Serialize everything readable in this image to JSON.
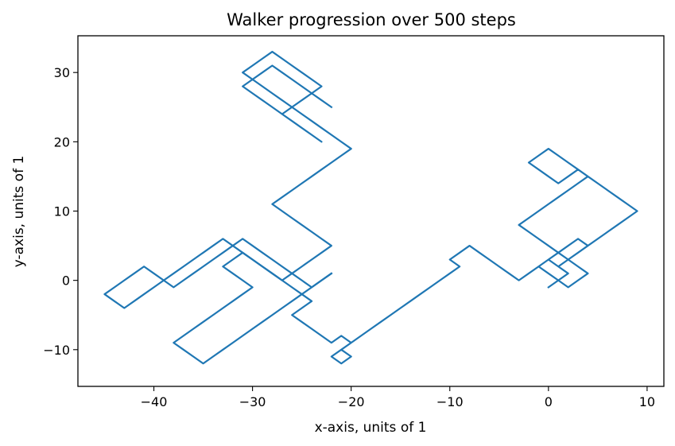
{
  "chart_data": {
    "type": "line",
    "title": "Walker progression over 500 steps",
    "xlabel": "x-axis, units of 1",
    "ylabel": "y-axis, units of 1",
    "xlim": [
      -47.7,
      11.7
    ],
    "ylim": [
      -15.3,
      35.3
    ],
    "xticks": [
      -40,
      -30,
      -20,
      -10,
      0,
      10
    ],
    "yticks": [
      -10,
      0,
      10,
      20,
      30
    ],
    "xtick_labels": [
      "−40",
      "−30",
      "−20",
      "−10",
      "0",
      "10"
    ],
    "ytick_labels": [
      "−10",
      "0",
      "10",
      "20",
      "30"
    ],
    "grid": false,
    "legend": "none",
    "colors": {
      "series": "#1f77b4"
    },
    "series": [
      {
        "x": [
          0,
          1,
          2,
          1,
          0,
          -1,
          0,
          1,
          2,
          3,
          4,
          3,
          2,
          1,
          0,
          -1,
          -2,
          -3,
          -2,
          -1,
          0,
          1,
          2,
          3,
          4,
          5,
          6,
          5,
          4,
          3,
          2,
          1,
          0,
          -1,
          -2,
          -1,
          0,
          1,
          2,
          3,
          4,
          5,
          6,
          7,
          8,
          9,
          8,
          7,
          6,
          5,
          4,
          3,
          2,
          1,
          2,
          3,
          4,
          3,
          2,
          1,
          0,
          1,
          0,
          -1,
          0,
          1,
          0,
          -1,
          -2,
          -3,
          -4,
          -5,
          -6,
          -7,
          -8,
          -9,
          -10,
          -9,
          -10,
          -11,
          -12,
          -13,
          -14,
          -15,
          -16,
          -17,
          -18,
          -19,
          -20,
          -21,
          -20,
          -21,
          -22,
          -21,
          -20,
          -21,
          -22,
          -23,
          -24,
          -25,
          -26,
          -25,
          -24,
          -25,
          -26,
          -27,
          -28,
          -29,
          -30,
          -31,
          -32,
          -33,
          -32,
          -31,
          -30,
          -31,
          -32,
          -33,
          -34,
          -35,
          -36,
          -37,
          -38,
          -37,
          -36,
          -35,
          -34,
          -33,
          -32,
          -31,
          -30,
          -29,
          -28,
          -27,
          -26,
          -25,
          -24,
          -23,
          -22
        ],
        "y": [
          -1,
          0,
          1,
          2,
          3,
          2,
          1,
          0,
          -1,
          0,
          1,
          2,
          3,
          4,
          5,
          6,
          7,
          8,
          9,
          10,
          11,
          12,
          13,
          14,
          15,
          14,
          13,
          14,
          15,
          16,
          17,
          18,
          19,
          18,
          17,
          16,
          15,
          14,
          15,
          16,
          15,
          14,
          13,
          12,
          11,
          10,
          9,
          8,
          7,
          6,
          5,
          4,
          3,
          2,
          3,
          4,
          5,
          6,
          5,
          4,
          3,
          4,
          5,
          6,
          5,
          4,
          3,
          2,
          1,
          0,
          1,
          2,
          3,
          4,
          5,
          4,
          3,
          2,
          1,
          0,
          -1,
          -2,
          -3,
          -4,
          -5,
          -6,
          -7,
          -8,
          -9,
          -10,
          -11,
          -12,
          -11,
          -10,
          -9,
          -8,
          -9,
          -8,
          -7,
          -6,
          -5,
          -4,
          -3,
          -2,
          -1,
          0,
          1,
          2,
          3,
          4,
          3,
          2,
          1,
          0,
          -1,
          -2,
          -3,
          -4,
          -5,
          -6,
          -7,
          -8,
          -9,
          -10,
          -11,
          -12,
          -11,
          -10,
          -9,
          -8,
          -7,
          -6,
          -5,
          -4,
          -3,
          -2,
          -1,
          0,
          1
        ]
      },
      {
        "x": [
          -22,
          -23,
          -24,
          -25,
          -26,
          -27,
          -28,
          -29,
          -30,
          -31,
          -32,
          -33,
          -34,
          -35,
          -36,
          -37,
          -38,
          -39,
          -40,
          -41,
          -42,
          -43,
          -44,
          -45,
          -44,
          -43,
          -42,
          -41,
          -40,
          -39,
          -38,
          -37,
          -36,
          -35,
          -34,
          -33,
          -32,
          -31,
          -30,
          -29,
          -28,
          -27,
          -26,
          -25,
          -24,
          -23,
          -22,
          -23,
          -24,
          -25,
          -26,
          -27,
          -28,
          -27,
          -26,
          -25,
          -24,
          -23,
          -22,
          -21,
          -20,
          -21,
          -22,
          -23,
          -24,
          -25,
          -26,
          -27,
          -28,
          -29,
          -30,
          -31,
          -30,
          -29,
          -28,
          -27,
          -26,
          -25,
          -24,
          -23,
          -24,
          -25,
          -26,
          -27,
          -26,
          -25,
          -24,
          -23,
          -24,
          -25,
          -26,
          -27,
          -28,
          -29,
          -30,
          -31,
          -30,
          -29,
          -28,
          -27,
          -26,
          -25,
          -24,
          -23,
          -22
        ],
        "y": [
          1,
          0,
          -1,
          0,
          1,
          2,
          3,
          4,
          5,
          6,
          5,
          4,
          3,
          2,
          1,
          0,
          -1,
          0,
          1,
          2,
          1,
          0,
          -1,
          -2,
          -3,
          -4,
          -3,
          -2,
          -1,
          0,
          1,
          2,
          3,
          4,
          5,
          6,
          5,
          4,
          3,
          2,
          1,
          0,
          1,
          2,
          3,
          4,
          5,
          6,
          7,
          8,
          9,
          10,
          11,
          12,
          13,
          14,
          15,
          16,
          17,
          18,
          19,
          20,
          21,
          22,
          23,
          24,
          25,
          26,
          27,
          28,
          29,
          30,
          31,
          32,
          33,
          32,
          31,
          30,
          29,
          28,
          27,
          26,
          25,
          24,
          23,
          22,
          21,
          20,
          21,
          22,
          23,
          24,
          25,
          26,
          27,
          28,
          29,
          30,
          31,
          30,
          29,
          28,
          27,
          26,
          25
        ]
      }
    ]
  }
}
